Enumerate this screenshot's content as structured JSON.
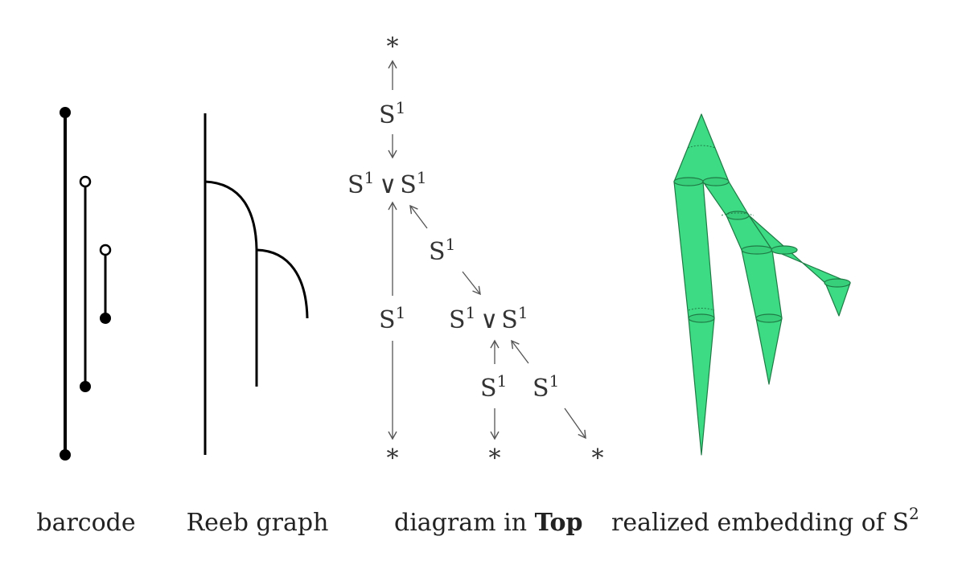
{
  "captions": {
    "barcode": "barcode",
    "reeb": "Reeb graph",
    "diagram_prefix": "diagram in ",
    "diagram_bold": "Top",
    "embedding_prefix": "realized embedding of ",
    "embedding_symbol": "S",
    "embedding_exp": "2"
  },
  "diagram": {
    "point_symbol": "*",
    "sphere_symbol": "S",
    "sphere_exp": "1",
    "wedge_symbol": "∨"
  },
  "colors": {
    "ink": "#000000",
    "arrow": "#555555",
    "fill_green": "#3ddc84",
    "fill_green_dark": "#2fbf70"
  },
  "barcode": {
    "bars": [
      {
        "birth_filled": true,
        "death_filled": true
      },
      {
        "birth_filled": true,
        "death_filled": false
      },
      {
        "birth_filled": true,
        "death_filled": false
      }
    ]
  }
}
